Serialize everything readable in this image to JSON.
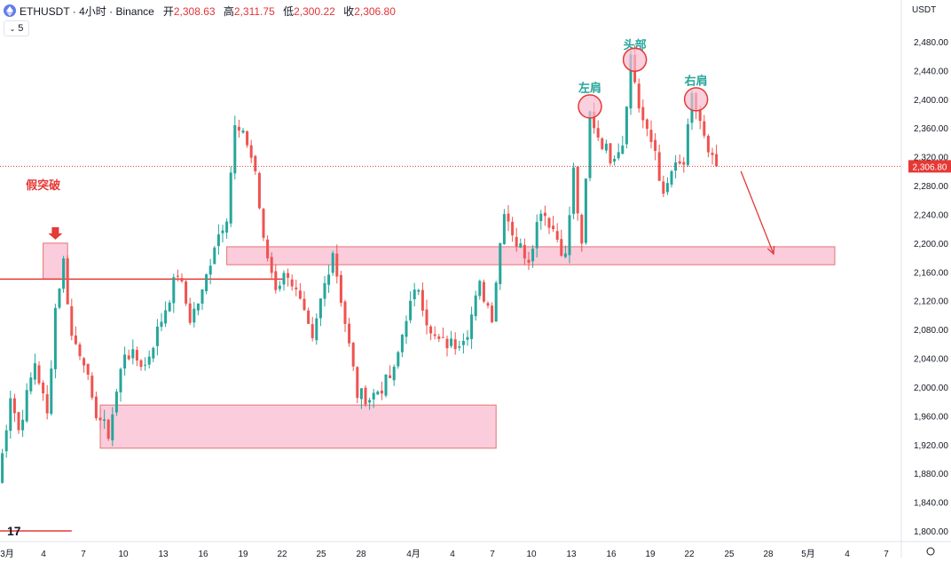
{
  "header": {
    "symbol": "ETHUSDT · 4小时 · Binance",
    "open_label": "开",
    "open_value": "2,308.63",
    "high_label": "高",
    "high_value": "2,311.75",
    "low_label": "低",
    "low_value": "2,300.22",
    "close_label": "收",
    "close_value": "2,306.80"
  },
  "indicator_toggle": {
    "label": "5"
  },
  "currency": "USDT",
  "colors": {
    "up": "#26a69a",
    "down": "#ef5350",
    "zone_fill": "#f8bbd0",
    "zone_stroke": "#e57373",
    "line_red": "#e53935",
    "label_red": "#e53935",
    "label_green": "#26a69a",
    "price_tag": "#e53935"
  },
  "chart_data": {
    "type": "candlestick",
    "title": "ETHUSDT · 4小时 · Binance",
    "ylim": [
      1780,
      2520
    ],
    "y_ticks": [
      "2,480.00",
      "2,440.00",
      "2,400.00",
      "2,360.00",
      "2,320.00",
      "2,280.00",
      "2,240.00",
      "2,200.00",
      "2,160.00",
      "2,120.00",
      "2,080.00",
      "2,040.00",
      "2,000.00",
      "1,960.00",
      "1,920.00",
      "1,880.00",
      "1,840.00",
      "1,800.00"
    ],
    "y_tick_values": [
      2480,
      2440,
      2400,
      2360,
      2320,
      2280,
      2240,
      2200,
      2160,
      2120,
      2080,
      2040,
      2000,
      1960,
      1920,
      1880,
      1840,
      1800
    ],
    "x_ticks": [
      "3月",
      "4",
      "7",
      "10",
      "13",
      "16",
      "19",
      "22",
      "25",
      "28",
      "4月",
      "4",
      "7",
      "10",
      "13",
      "16",
      "19",
      "22",
      "25",
      "28",
      "5月",
      "4",
      "7"
    ],
    "last_price": "2,306.80",
    "last_price_value": 2306.8,
    "key_points": [
      {
        "t": 0,
        "p": 1865
      },
      {
        "t": 3,
        "p": 1990
      },
      {
        "t": 5,
        "p": 1940
      },
      {
        "t": 9,
        "p": 2035
      },
      {
        "t": 12,
        "p": 1960
      },
      {
        "t": 14,
        "p": 2110
      },
      {
        "t": 16,
        "p": 2175
      },
      {
        "t": 18,
        "p": 2070
      },
      {
        "t": 21,
        "p": 2040
      },
      {
        "t": 23,
        "p": 1975
      },
      {
        "t": 27,
        "p": 1935
      },
      {
        "t": 31,
        "p": 2050
      },
      {
        "t": 36,
        "p": 2030
      },
      {
        "t": 41,
        "p": 2110
      },
      {
        "t": 44,
        "p": 2160
      },
      {
        "t": 47,
        "p": 2095
      },
      {
        "t": 50,
        "p": 2130
      },
      {
        "t": 53,
        "p": 2200
      },
      {
        "t": 56,
        "p": 2240
      },
      {
        "t": 58,
        "p": 2360
      },
      {
        "t": 61,
        "p": 2340
      },
      {
        "t": 63,
        "p": 2300
      },
      {
        "t": 65,
        "p": 2200
      },
      {
        "t": 68,
        "p": 2140
      },
      {
        "t": 71,
        "p": 2160
      },
      {
        "t": 74,
        "p": 2115
      },
      {
        "t": 77,
        "p": 2060
      },
      {
        "t": 79,
        "p": 2120
      },
      {
        "t": 82,
        "p": 2190
      },
      {
        "t": 85,
        "p": 2090
      },
      {
        "t": 88,
        "p": 1990
      },
      {
        "t": 91,
        "p": 1985
      },
      {
        "t": 94,
        "p": 2000
      },
      {
        "t": 97,
        "p": 2020
      },
      {
        "t": 100,
        "p": 2100
      },
      {
        "t": 103,
        "p": 2140
      },
      {
        "t": 106,
        "p": 2070
      },
      {
        "t": 109,
        "p": 2060
      },
      {
        "t": 112,
        "p": 2060
      },
      {
        "t": 115,
        "p": 2080
      },
      {
        "t": 118,
        "p": 2140
      },
      {
        "t": 121,
        "p": 2100
      },
      {
        "t": 124,
        "p": 2250
      },
      {
        "t": 127,
        "p": 2200
      },
      {
        "t": 130,
        "p": 2180
      },
      {
        "t": 133,
        "p": 2250
      },
      {
        "t": 136,
        "p": 2220
      },
      {
        "t": 139,
        "p": 2180
      },
      {
        "t": 141,
        "p": 2300
      },
      {
        "t": 143,
        "p": 2190
      },
      {
        "t": 145,
        "p": 2380
      },
      {
        "t": 147,
        "p": 2350
      },
      {
        "t": 150,
        "p": 2320
      },
      {
        "t": 153,
        "p": 2340
      },
      {
        "t": 155,
        "p": 2460
      },
      {
        "t": 157,
        "p": 2390
      },
      {
        "t": 159,
        "p": 2350
      },
      {
        "t": 161,
        "p": 2330
      },
      {
        "t": 163,
        "p": 2260
      },
      {
        "t": 165,
        "p": 2300
      },
      {
        "t": 168,
        "p": 2310
      },
      {
        "t": 170,
        "p": 2400
      },
      {
        "t": 172,
        "p": 2370
      },
      {
        "t": 174,
        "p": 2320
      },
      {
        "t": 176,
        "p": 2306.8
      }
    ],
    "support_resistance_lines": [
      {
        "from_t": 0,
        "to_t": 70,
        "price": 2150
      },
      {
        "from_t": 0,
        "to_t": 18,
        "price": 1800
      }
    ],
    "zones": [
      {
        "name": "supply-zone",
        "from_t": 56,
        "to_t": 205,
        "p_high": 2195,
        "p_low": 2170
      },
      {
        "name": "demand-zone",
        "from_t": 25,
        "to_t": 122,
        "p_high": 1975,
        "p_low": 1915
      },
      {
        "name": "false-breakout-box",
        "from_t": 11,
        "to_t": 17,
        "p_high": 2200,
        "p_low": 2150
      }
    ],
    "annotations": [
      {
        "text": "假突破",
        "t": 11,
        "p": 2275,
        "color": "red"
      },
      {
        "text": "左肩",
        "t": 145,
        "p": 2410,
        "color": "green",
        "circle_t": 145,
        "circle_p": 2390
      },
      {
        "text": "头部",
        "t": 156,
        "p": 2470,
        "color": "green",
        "circle_t": 156,
        "circle_p": 2455
      },
      {
        "text": "右肩",
        "t": 171,
        "p": 2420,
        "color": "green",
        "circle_t": 171,
        "circle_p": 2400
      }
    ],
    "projection_arrow": {
      "from_t": 182,
      "from_p": 2300,
      "to_t": 190,
      "to_p": 2185
    }
  }
}
